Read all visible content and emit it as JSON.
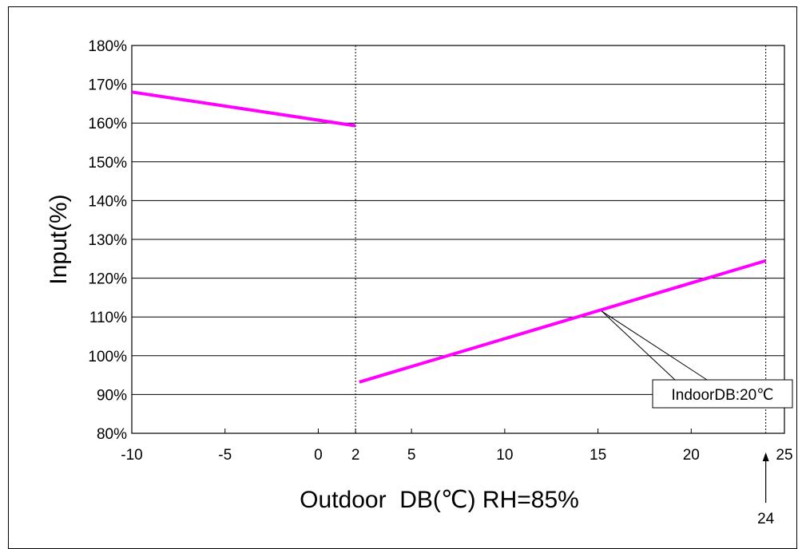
{
  "chart_data": {
    "type": "line",
    "title": "",
    "xlabel": "Outdoor  DB(℃) RH=85%",
    "ylabel": "Input(%)",
    "xlim": [
      -10,
      25
    ],
    "ylim": [
      80,
      180
    ],
    "x_ticks": [
      -10,
      -5,
      0,
      2,
      5,
      10,
      15,
      20,
      25
    ],
    "x_tick_labels": [
      "-10",
      "-5",
      "0",
      "2",
      "5",
      "10",
      "15",
      "20",
      "25"
    ],
    "y_ticks": [
      80,
      90,
      100,
      110,
      120,
      130,
      140,
      150,
      160,
      170,
      180
    ],
    "y_tick_labels": [
      "80%",
      "90%",
      "100%",
      "110%",
      "120%",
      "130%",
      "140%",
      "150%",
      "160%",
      "170%",
      "180%"
    ],
    "grid": "horizontal",
    "reference_lines_x": [
      2,
      24
    ],
    "series": [
      {
        "name": "IndoorDB:20℃",
        "color": "#ff00ff",
        "segments": [
          [
            {
              "x": -10,
              "y": 168
            },
            {
              "x": 2,
              "y": 159.3
            }
          ],
          [
            {
              "x": 2.2,
              "y": 93.2
            },
            {
              "x": 24,
              "y": 124.5
            }
          ]
        ]
      }
    ],
    "annotations": [
      {
        "text": "IndoorDB:20℃",
        "points_to": {
          "x": 15.2,
          "y": 111.5
        }
      },
      {
        "text": "24",
        "points_to": {
          "x": 24,
          "y": 80
        }
      }
    ]
  }
}
